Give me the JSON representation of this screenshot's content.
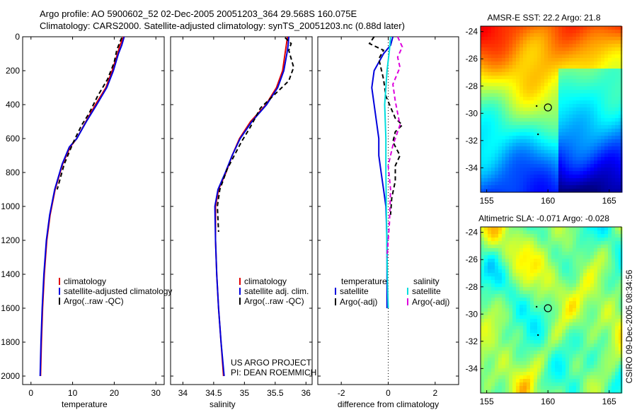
{
  "header": {
    "line1": "Argo profile: AO 5900602_52 02-Dec-2005 20051203_364 29.568S 160.075E",
    "line2": "Climatology: CARS2000. Satellite-adjusted climatology: synTS_20051203.nc (0.88d later)"
  },
  "side_label": "CSIRO 09-Dec-2005 08:34:56",
  "project_text": [
    "US ARGO PROJECT",
    "PI: DEAN ROEMMICH"
  ],
  "colors": {
    "red": "#e00000",
    "blue": "#0000dd",
    "black": "#000000",
    "cyan": "#00dddd",
    "magenta": "#dd00dd"
  },
  "chart_data": [
    {
      "type": "line",
      "panel": "temperature",
      "xlabel": "temperature",
      "ylabel": "",
      "xlim": [
        -2,
        32
      ],
      "ylim": [
        2050,
        0
      ],
      "xticks": [
        0,
        10,
        20,
        30
      ],
      "yticks": [
        0,
        200,
        400,
        600,
        800,
        1000,
        1200,
        1400,
        1600,
        1800,
        2000
      ],
      "legend": [
        "climatology",
        "satellite-adjusted climatology",
        "Argo(..raw -QC)"
      ],
      "legend_position": "bottom-right",
      "series": [
        {
          "name": "climatology",
          "color": "red",
          "dash": false,
          "x": [
            22.2,
            21.4,
            20.8,
            19.5,
            18.0,
            15.5,
            13.2,
            11.0,
            9.4,
            7.6,
            5.8,
            4.6,
            3.8,
            3.2,
            2.8,
            2.5,
            2.3
          ],
          "y": [
            0,
            50,
            100,
            200,
            300,
            400,
            500,
            600,
            650,
            750,
            900,
            1050,
            1200,
            1400,
            1600,
            1800,
            2000
          ]
        },
        {
          "name": "satellite-adjusted climatology",
          "color": "blue",
          "dash": false,
          "x": [
            22.4,
            21.8,
            21.0,
            19.8,
            18.2,
            15.8,
            13.3,
            11.0,
            9.2,
            7.5,
            5.7,
            4.5,
            3.7,
            3.1,
            2.7,
            2.4,
            2.2
          ],
          "y": [
            0,
            50,
            100,
            200,
            300,
            400,
            500,
            600,
            650,
            750,
            900,
            1050,
            1200,
            1400,
            1600,
            1800,
            2000
          ]
        },
        {
          "name": "Argo(..raw -QC)",
          "color": "black",
          "dash": true,
          "x": [
            21.8,
            21.2,
            20.6,
            20.0,
            18.4,
            16.0,
            14.0,
            12.2,
            10.2,
            8.0,
            6.3
          ],
          "y": [
            5,
            40,
            80,
            150,
            250,
            350,
            450,
            520,
            620,
            750,
            900
          ]
        }
      ]
    },
    {
      "type": "line",
      "panel": "salinity",
      "xlabel": "salinity",
      "ylabel": "",
      "xlim": [
        33.8,
        36.1
      ],
      "ylim": [
        2050,
        0
      ],
      "xticks": [
        34,
        34.5,
        35,
        35.5,
        36
      ],
      "legend": [
        "climatology",
        "satellite adj. clim.",
        "Argo(..raw -QC)"
      ],
      "legend_position": "bottom-right",
      "series": [
        {
          "name": "climatology",
          "color": "red",
          "dash": false,
          "x": [
            35.7,
            35.68,
            35.66,
            35.62,
            35.52,
            35.35,
            35.1,
            34.92,
            34.8,
            34.7,
            34.58,
            34.53,
            34.53,
            34.55,
            34.58,
            34.62,
            34.66
          ],
          "y": [
            0,
            50,
            100,
            200,
            300,
            400,
            500,
            600,
            700,
            800,
            900,
            1000,
            1200,
            1400,
            1600,
            1800,
            2000
          ]
        },
        {
          "name": "satellite adj. clim.",
          "color": "blue",
          "dash": false,
          "x": [
            35.72,
            35.71,
            35.69,
            35.64,
            35.54,
            35.36,
            35.12,
            34.93,
            34.8,
            34.69,
            34.57,
            34.52,
            34.53,
            34.55,
            34.58,
            34.62,
            34.67
          ],
          "y": [
            0,
            50,
            100,
            200,
            300,
            400,
            500,
            600,
            700,
            800,
            900,
            1000,
            1200,
            1400,
            1600,
            1800,
            2000
          ]
        },
        {
          "name": "Argo(..raw -QC)",
          "color": "black",
          "dash": true,
          "x": [
            35.66,
            35.76,
            35.72,
            35.8,
            35.72,
            35.52,
            35.26,
            35.1,
            34.95,
            34.72,
            34.6,
            34.56,
            34.58
          ],
          "y": [
            5,
            40,
            80,
            180,
            260,
            330,
            420,
            530,
            620,
            780,
            900,
            1000,
            1150
          ]
        }
      ]
    },
    {
      "type": "line",
      "panel": "difference",
      "xlabel": "difference from climatology",
      "ylabel": "",
      "xlim": [
        -3,
        3
      ],
      "ylim": [
        2050,
        0
      ],
      "xticks": [
        -2,
        0,
        2
      ],
      "legend_groups": [
        {
          "title": "temperature",
          "items": [
            "satellite",
            "Argo(-adj)"
          ]
        },
        {
          "title": "salinity",
          "items": [
            "satellite",
            "Argo(-adj)"
          ]
        }
      ],
      "legend_position": "bottom",
      "series": [
        {
          "name": "temperature satellite",
          "color": "blue",
          "dash": false,
          "x": [
            0.2,
            0.1,
            -0.2,
            -0.6,
            -0.7,
            -0.6,
            -0.5,
            -0.4,
            -0.4,
            -0.3,
            -0.2,
            -0.1,
            -0.05,
            -0.05,
            -0.05
          ],
          "y": [
            0,
            50,
            100,
            200,
            300,
            400,
            500,
            600,
            700,
            800,
            900,
            1000,
            1200,
            1400,
            1600
          ]
        },
        {
          "name": "temperature Argo(-adj)",
          "color": "black",
          "dash": true,
          "x": [
            -0.6,
            -0.8,
            -0.2,
            -0.4,
            -0.2,
            -0.1,
            0.3,
            0.6,
            0.3,
            0.2,
            0.5,
            0.3,
            0.3,
            0.15,
            0.1
          ],
          "y": [
            0,
            40,
            80,
            130,
            250,
            350,
            480,
            520,
            560,
            620,
            700,
            760,
            850,
            950,
            1050
          ]
        },
        {
          "name": "salinity satellite",
          "color": "cyan",
          "dash": false,
          "x": [
            0.1,
            0.05,
            -0.05,
            -0.1,
            -0.15,
            -0.1,
            -0.1,
            -0.08,
            -0.06,
            -0.04,
            -0.02,
            0.0
          ],
          "y": [
            0,
            80,
            200,
            300,
            400,
            600,
            800,
            1000,
            1200,
            1400,
            1500,
            1600
          ]
        },
        {
          "name": "salinity Argo(-adj)",
          "color": "magenta",
          "dash": true,
          "x": [
            0.4,
            0.6,
            0.4,
            0.5,
            0.2,
            0.3,
            0.5,
            0.2,
            0.0,
            0.1,
            0.05,
            -0.05
          ],
          "y": [
            0,
            60,
            120,
            180,
            280,
            380,
            520,
            640,
            760,
            900,
            1100,
            1300
          ]
        }
      ]
    },
    {
      "type": "heatmap",
      "panel": "sst_map",
      "title": "AMSR-E SST: 22.2 Argo: 21.8",
      "xlim": [
        154.5,
        166
      ],
      "ylim": [
        -35.8,
        -23.6
      ],
      "xticks": [
        155,
        160,
        165
      ],
      "yticks": [
        -24,
        -26,
        -28,
        -30,
        -32,
        -34
      ],
      "marker": [
        160.0,
        -29.57
      ]
    },
    {
      "type": "heatmap",
      "panel": "sla_map",
      "title": "Altimetric SLA: -0.071 Argo: -0.028",
      "xlim": [
        154.5,
        166
      ],
      "ylim": [
        -35.8,
        -23.6
      ],
      "xticks": [
        155,
        160,
        165
      ],
      "yticks": [
        -24,
        -26,
        -28,
        -30,
        -32,
        -34
      ],
      "marker": [
        160.0,
        -29.57
      ]
    }
  ]
}
